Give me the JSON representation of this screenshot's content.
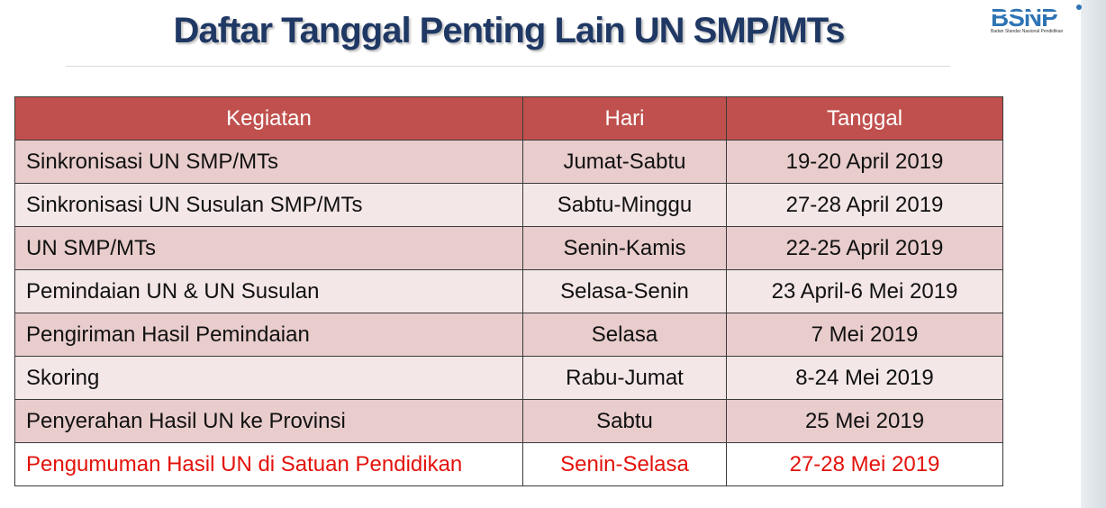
{
  "title": "Daftar Tanggal Penting Lain UN SMP/MTs",
  "logo": {
    "text": "BSNP",
    "caption": "Badan Standar Nasional Pendidikan",
    "color": "#2e74b5"
  },
  "table": {
    "headers": [
      "Kegiatan",
      "Hari",
      "Tanggal"
    ],
    "rows": [
      {
        "kegiatan": "Sinkronisasi UN SMP/MTs",
        "hari": "Jumat-Sabtu",
        "tanggal": "19-20 April 2019"
      },
      {
        "kegiatan": "Sinkronisasi UN Susulan SMP/MTs",
        "hari": "Sabtu-Minggu",
        "tanggal": "27-28 April 2019"
      },
      {
        "kegiatan": "UN SMP/MTs",
        "hari": "Senin-Kamis",
        "tanggal": "22-25 April 2019"
      },
      {
        "kegiatan": "Pemindaian UN & UN Susulan",
        "hari": "Selasa-Senin",
        "tanggal": "23 April-6 Mei 2019"
      },
      {
        "kegiatan": "Pengiriman Hasil Pemindaian",
        "hari": "Selasa",
        "tanggal": "7 Mei 2019"
      },
      {
        "kegiatan": "Skoring",
        "hari": "Rabu-Jumat",
        "tanggal": "8-24 Mei 2019"
      },
      {
        "kegiatan": "Penyerahan Hasil UN ke Provinsi",
        "hari": "Sabtu",
        "tanggal": "25 Mei 2019"
      },
      {
        "kegiatan": "Pengumuman Hasil UN di Satuan Pendidikan",
        "hari": "Senin-Selasa",
        "tanggal": "27-28 Mei 2019"
      }
    ]
  },
  "colors": {
    "header_bg": "#c0504d",
    "row_dark": "#e8cdcc",
    "row_light": "#f4e7e7",
    "highlight_text": "#e3120b",
    "title": "#1f3864"
  }
}
